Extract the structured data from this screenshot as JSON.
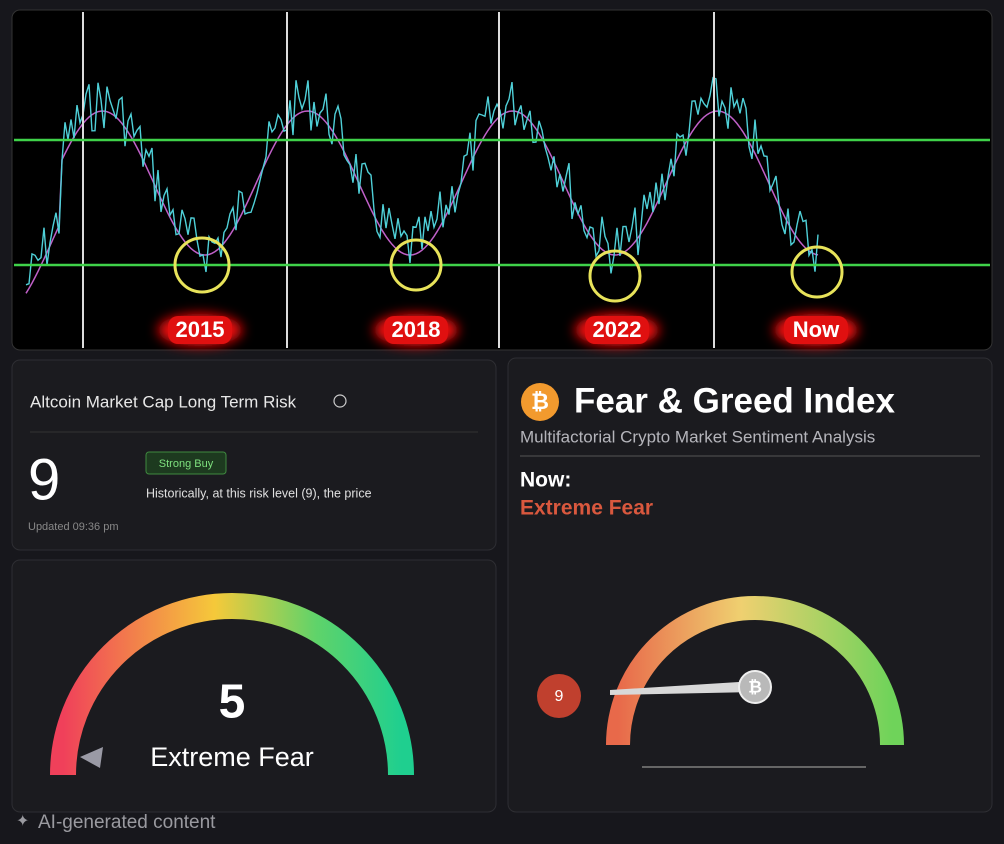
{
  "top_chart": {
    "labels": [
      "2015",
      "2018",
      "2022",
      "Now"
    ]
  },
  "risk_card": {
    "title": "Altcoin Market Cap Long Term Risk",
    "value": 9,
    "badge": "Strong Buy",
    "description": "Historically, at this risk level (9), the price",
    "updated": "Updated 09:36 pm"
  },
  "gauge_card": {
    "value": 5,
    "label": "Extreme Fear"
  },
  "fear_greed": {
    "title": "Fear & Greed Index",
    "subtitle": "Multifactorial Crypto Market Sentiment Analysis",
    "now_label": "Now:",
    "now_value": "Extreme Fear",
    "value": 9
  },
  "footer": "AI-generated content"
}
